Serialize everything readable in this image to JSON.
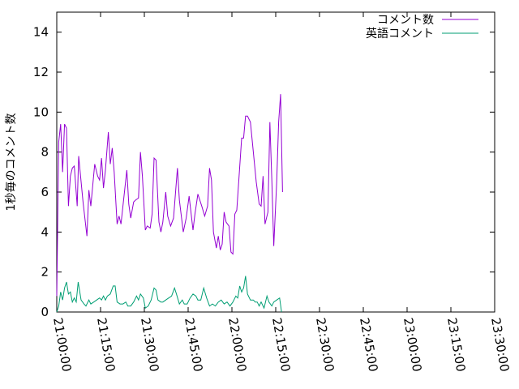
{
  "chart_data": {
    "type": "line",
    "title": "",
    "xlabel": "",
    "ylabel": "1秒毎のコメント数",
    "ylim": [
      0,
      15
    ],
    "yticks": [
      0,
      2,
      4,
      6,
      8,
      10,
      12,
      14
    ],
    "ytick_labels": [
      "0",
      "2",
      "4",
      "6",
      "8",
      "10",
      "12",
      "14"
    ],
    "xticks": [
      "21:00:00",
      "21:15:00",
      "21:30:00",
      "21:45:00",
      "22:00:00",
      "22:15:00",
      "22:30:00",
      "22:45:00",
      "23:00:00",
      "23:15:00",
      "23:30:00"
    ],
    "xlim": [
      "21:00:00",
      "23:30:00"
    ],
    "grid": false,
    "legend_position": "top-right",
    "series": [
      {
        "name": "コメント数",
        "color": "#9400d3",
        "points": [
          [
            "21:00:00",
            0.8
          ],
          [
            "21:00:40",
            8.5
          ],
          [
            "21:01:20",
            9.4
          ],
          [
            "21:02:00",
            7.0
          ],
          [
            "21:02:40",
            9.4
          ],
          [
            "21:03:20",
            9.2
          ],
          [
            "21:04:00",
            5.3
          ],
          [
            "21:04:40",
            6.8
          ],
          [
            "21:05:20",
            7.2
          ],
          [
            "21:06:00",
            7.3
          ],
          [
            "21:07:00",
            5.3
          ],
          [
            "21:07:30",
            7.8
          ],
          [
            "21:09:00",
            5.5
          ],
          [
            "21:10:20",
            3.8
          ],
          [
            "21:11:00",
            6.1
          ],
          [
            "21:11:40",
            5.3
          ],
          [
            "21:13:00",
            7.4
          ],
          [
            "21:14:00",
            6.8
          ],
          [
            "21:14:40",
            6.6
          ],
          [
            "21:15:20",
            7.7
          ],
          [
            "21:16:00",
            6.2
          ],
          [
            "21:16:40",
            7.1
          ],
          [
            "21:17:40",
            9.0
          ],
          [
            "21:18:20",
            7.4
          ],
          [
            "21:19:00",
            8.2
          ],
          [
            "21:19:40",
            7.0
          ],
          [
            "21:20:40",
            4.4
          ],
          [
            "21:21:20",
            4.8
          ],
          [
            "21:22:00",
            4.4
          ],
          [
            "21:23:20",
            6.2
          ],
          [
            "21:24:00",
            7.1
          ],
          [
            "21:24:40",
            5.4
          ],
          [
            "21:25:20",
            4.7
          ],
          [
            "21:26:20",
            5.5
          ],
          [
            "21:27:00",
            5.6
          ],
          [
            "21:28:00",
            5.7
          ],
          [
            "21:28:40",
            8.0
          ],
          [
            "21:29:20",
            6.8
          ],
          [
            "21:30:20",
            4.1
          ],
          [
            "21:31:00",
            4.3
          ],
          [
            "21:32:00",
            4.2
          ],
          [
            "21:32:40",
            4.9
          ],
          [
            "21:33:20",
            7.7
          ],
          [
            "21:34:00",
            7.6
          ],
          [
            "21:35:00",
            4.5
          ],
          [
            "21:35:40",
            4.0
          ],
          [
            "21:36:20",
            4.5
          ],
          [
            "21:37:20",
            6.0
          ],
          [
            "21:38:00",
            4.8
          ],
          [
            "21:39:00",
            4.3
          ],
          [
            "21:40:00",
            4.7
          ],
          [
            "21:41:20",
            7.2
          ],
          [
            "21:42:00",
            5.6
          ],
          [
            "21:43:20",
            4.0
          ],
          [
            "21:44:20",
            4.7
          ],
          [
            "21:45:20",
            5.8
          ],
          [
            "21:46:40",
            4.1
          ],
          [
            "21:47:20",
            4.9
          ],
          [
            "21:48:20",
            5.9
          ],
          [
            "21:49:40",
            5.3
          ],
          [
            "21:50:40",
            4.8
          ],
          [
            "21:51:40",
            5.3
          ],
          [
            "21:52:20",
            7.2
          ],
          [
            "21:53:00",
            6.6
          ],
          [
            "21:53:40",
            4.0
          ],
          [
            "21:54:40",
            3.2
          ],
          [
            "21:55:20",
            3.8
          ],
          [
            "21:56:00",
            3.1
          ],
          [
            "21:56:40",
            3.4
          ],
          [
            "21:57:20",
            5.0
          ],
          [
            "21:58:00",
            4.5
          ],
          [
            "21:59:00",
            4.3
          ],
          [
            "21:59:40",
            3.0
          ],
          [
            "22:00:20",
            2.9
          ],
          [
            "22:01:00",
            4.9
          ],
          [
            "22:01:40",
            5.1
          ],
          [
            "22:03:20",
            8.7
          ],
          [
            "22:04:00",
            8.7
          ],
          [
            "22:04:40",
            9.8
          ],
          [
            "22:05:20",
            9.8
          ],
          [
            "22:06:20",
            9.5
          ],
          [
            "22:07:20",
            8.0
          ],
          [
            "22:08:20",
            6.5
          ],
          [
            "22:09:20",
            5.4
          ],
          [
            "22:10:00",
            5.3
          ],
          [
            "22:10:40",
            6.8
          ],
          [
            "22:11:20",
            4.4
          ],
          [
            "22:12:20",
            5.0
          ],
          [
            "22:13:00",
            9.5
          ],
          [
            "22:13:40",
            6.6
          ],
          [
            "22:14:20",
            3.3
          ],
          [
            "22:15:20",
            6.5
          ],
          [
            "22:16:00",
            9.5
          ],
          [
            "22:16:40",
            10.9
          ],
          [
            "22:17:20",
            6.0
          ]
        ]
      },
      {
        "name": "英語コメント",
        "color": "#009e73",
        "points": [
          [
            "21:00:00",
            0.0
          ],
          [
            "21:00:40",
            0.3
          ],
          [
            "21:01:20",
            1.0
          ],
          [
            "21:02:00",
            0.6
          ],
          [
            "21:02:40",
            1.2
          ],
          [
            "21:03:20",
            1.5
          ],
          [
            "21:04:00",
            0.9
          ],
          [
            "21:04:40",
            1.0
          ],
          [
            "21:05:20",
            0.5
          ],
          [
            "21:06:00",
            0.7
          ],
          [
            "21:06:40",
            0.5
          ],
          [
            "21:07:20",
            1.5
          ],
          [
            "21:08:20",
            0.6
          ],
          [
            "21:09:20",
            0.4
          ],
          [
            "21:10:00",
            0.3
          ],
          [
            "21:11:00",
            0.6
          ],
          [
            "21:11:40",
            0.4
          ],
          [
            "21:12:40",
            0.5
          ],
          [
            "21:13:40",
            0.6
          ],
          [
            "21:14:40",
            0.7
          ],
          [
            "21:15:20",
            0.6
          ],
          [
            "21:16:00",
            0.8
          ],
          [
            "21:16:40",
            0.6
          ],
          [
            "21:17:20",
            0.8
          ],
          [
            "21:18:20",
            0.9
          ],
          [
            "21:19:20",
            1.3
          ],
          [
            "21:20:00",
            1.3
          ],
          [
            "21:20:40",
            0.5
          ],
          [
            "21:21:40",
            0.4
          ],
          [
            "21:22:40",
            0.4
          ],
          [
            "21:23:40",
            0.5
          ],
          [
            "21:24:20",
            0.3
          ],
          [
            "21:25:20",
            0.3
          ],
          [
            "21:26:20",
            0.5
          ],
          [
            "21:27:20",
            0.8
          ],
          [
            "21:28:00",
            0.6
          ],
          [
            "21:28:40",
            0.9
          ],
          [
            "21:29:40",
            0.7
          ],
          [
            "21:30:20",
            0.2
          ],
          [
            "21:31:20",
            0.3
          ],
          [
            "21:32:20",
            0.6
          ],
          [
            "21:33:20",
            1.2
          ],
          [
            "21:34:00",
            1.1
          ],
          [
            "21:34:40",
            0.6
          ],
          [
            "21:35:40",
            0.5
          ],
          [
            "21:36:20",
            0.5
          ],
          [
            "21:37:20",
            0.6
          ],
          [
            "21:38:20",
            0.7
          ],
          [
            "21:39:20",
            0.8
          ],
          [
            "21:40:20",
            1.2
          ],
          [
            "21:41:00",
            0.9
          ],
          [
            "21:42:00",
            0.4
          ],
          [
            "21:43:00",
            0.6
          ],
          [
            "21:43:40",
            0.4
          ],
          [
            "21:44:40",
            0.4
          ],
          [
            "21:45:40",
            0.7
          ],
          [
            "21:46:40",
            0.9
          ],
          [
            "21:47:40",
            0.8
          ],
          [
            "21:48:20",
            0.6
          ],
          [
            "21:49:20",
            0.6
          ],
          [
            "21:50:20",
            1.2
          ],
          [
            "21:51:20",
            0.7
          ],
          [
            "21:52:20",
            0.3
          ],
          [
            "21:53:20",
            0.4
          ],
          [
            "21:54:20",
            0.3
          ],
          [
            "21:55:20",
            0.5
          ],
          [
            "21:56:20",
            0.6
          ],
          [
            "21:57:20",
            0.4
          ],
          [
            "21:58:20",
            0.5
          ],
          [
            "21:59:20",
            0.3
          ],
          [
            "22:00:20",
            0.5
          ],
          [
            "22:01:20",
            0.8
          ],
          [
            "22:02:00",
            0.7
          ],
          [
            "22:02:40",
            1.3
          ],
          [
            "22:03:20",
            1.0
          ],
          [
            "22:04:00",
            1.2
          ],
          [
            "22:04:40",
            1.8
          ],
          [
            "22:05:20",
            0.9
          ],
          [
            "22:06:20",
            0.6
          ],
          [
            "22:07:20",
            0.6
          ],
          [
            "22:08:00",
            0.5
          ],
          [
            "22:08:40",
            0.5
          ],
          [
            "22:09:20",
            0.3
          ],
          [
            "22:10:00",
            0.5
          ],
          [
            "22:11:00",
            0.2
          ],
          [
            "22:12:00",
            0.8
          ],
          [
            "22:12:40",
            0.5
          ],
          [
            "22:13:40",
            0.3
          ],
          [
            "22:14:20",
            0.5
          ],
          [
            "22:15:20",
            0.6
          ],
          [
            "22:16:20",
            0.7
          ],
          [
            "22:17:00",
            0.0
          ]
        ]
      }
    ]
  }
}
